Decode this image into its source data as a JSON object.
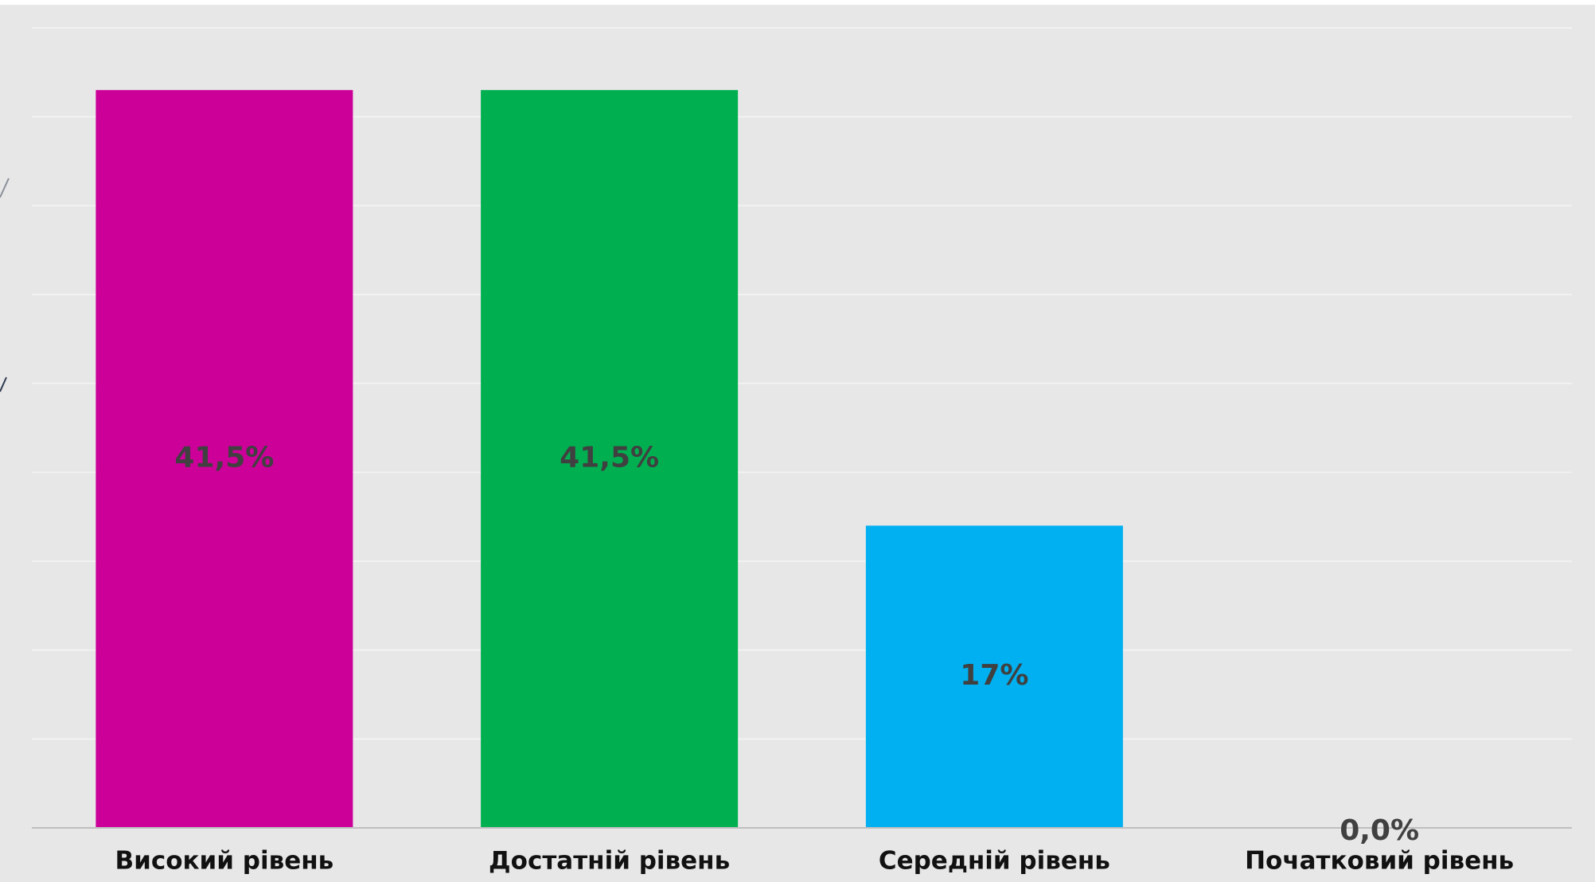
{
  "chart_data": {
    "type": "bar",
    "categories": [
      "Високий рівень",
      "Достатній рівень",
      "Середній рівень",
      "Початковий рівень"
    ],
    "values": [
      41.5,
      41.5,
      17,
      0.0
    ],
    "data_labels": [
      "41,5%",
      "41,5%",
      "17%",
      "0,0%"
    ],
    "colors": [
      "#cc0099",
      "#00b050",
      "#00b0f0",
      "#00b050"
    ],
    "ylim": [
      0,
      45
    ],
    "grid": true,
    "legend": "none",
    "title": "",
    "xlabel": "",
    "ylabel": ""
  },
  "style": {
    "panel_bg": "#e7e7e7",
    "gridline_color": "#f2f2f2",
    "axis_color": "#bfbfbf",
    "label_color": "#404040",
    "category_label_color": "#111111"
  }
}
